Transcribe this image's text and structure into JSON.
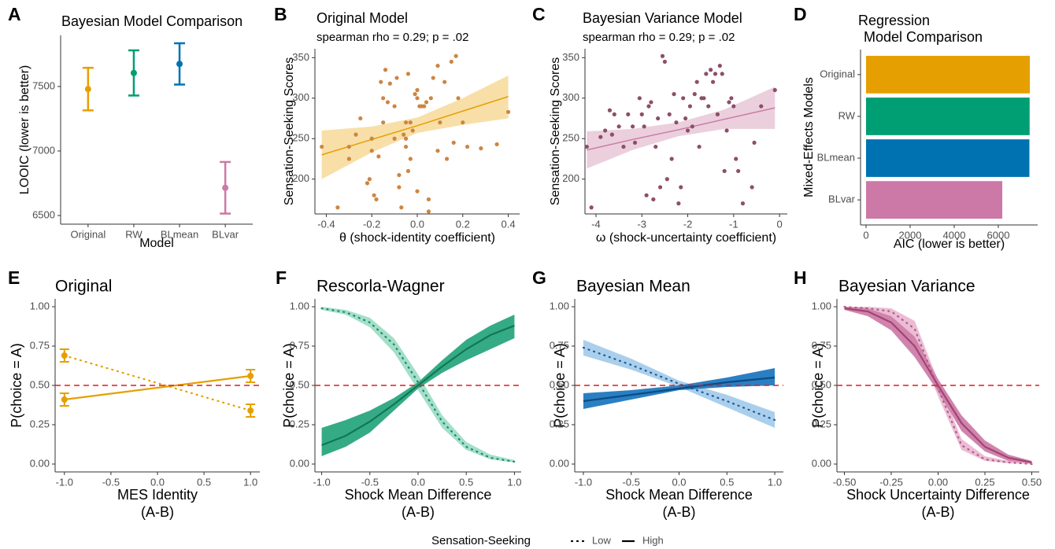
{
  "chart_data": [
    {
      "panel": "A",
      "type": "errorbar",
      "title": "Bayesian Model Comparison",
      "x_label": "Model",
      "y_label": "LOOIC (lower is better)",
      "categories": [
        "Original",
        "RW",
        "BLmean",
        "BLvar"
      ],
      "values": [
        7480,
        7605,
        7675,
        6715
      ],
      "errors": [
        165,
        175,
        160,
        200
      ],
      "colors": [
        "#E69F00",
        "#009E73",
        "#0072B2",
        "#CC79A7"
      ],
      "ylim": [
        6433,
        7896
      ],
      "yticks": [
        6500,
        7000,
        7500
      ]
    },
    {
      "panel": "B",
      "type": "scatter",
      "title": "Original Model",
      "subtitle": "spearman rho = 0.29; p = .02",
      "x_label": "θ  (shock-identity coefficient)",
      "y_label": "Sensation-Seeking Scores",
      "color": "#CD8543",
      "x": [
        -0.42,
        -0.35,
        -0.3,
        -0.3,
        -0.27,
        -0.25,
        -0.22,
        -0.21,
        -0.2,
        -0.19,
        -0.18,
        -0.17,
        -0.16,
        -0.15,
        -0.14,
        -0.13,
        -0.12,
        -0.1,
        -0.1,
        -0.09,
        -0.08,
        -0.08,
        -0.07,
        -0.06,
        -0.05,
        -0.05,
        -0.04,
        -0.04,
        -0.03,
        -0.03,
        -0.02,
        -0.01,
        0,
        0,
        0.01,
        0.02,
        0.03,
        0.04,
        0.05,
        0.05,
        0.06,
        0.07,
        0.09,
        0.09,
        0.1,
        0.12,
        0.13,
        0.15,
        0.16,
        0.17,
        0.18,
        0.2,
        0.22,
        0.28,
        0.35,
        0.4,
        -0.05,
        0,
        -0.15,
        -0.2
      ],
      "y": [
        240,
        165,
        240,
        225,
        255,
        275,
        195,
        200,
        250,
        180,
        175,
        228,
        320,
        300,
        335,
        295,
        318,
        250,
        290,
        325,
        190,
        205,
        165,
        255,
        270,
        240,
        330,
        210,
        225,
        270,
        260,
        305,
        300,
        310,
        290,
        290,
        290,
        295,
        175,
        160,
        300,
        325,
        340,
        235,
        270,
        320,
        225,
        345,
        245,
        352,
        300,
        270,
        240,
        238,
        243,
        283,
        250,
        185,
        270,
        235
      ],
      "fit": {
        "x": [
          -0.42,
          -0.2,
          0,
          0.2,
          0.4
        ],
        "values": [
          230,
          249,
          266,
          284,
          302
        ],
        "lower": [
          200,
          233,
          257,
          267,
          275
        ],
        "upper": [
          260,
          265,
          276,
          300,
          328
        ],
        "color": "#E69F00",
        "band_color": "#F8DFA8"
      },
      "xlim": [
        -0.45,
        0.45
      ],
      "xticks": [
        -0.4,
        -0.2,
        {
          "value": 0,
          "label": "0.0"
        },
        0.2,
        0.4
      ],
      "ylim": [
        157,
        361
      ],
      "yticks": [
        200,
        250,
        300,
        350
      ]
    },
    {
      "panel": "C",
      "type": "scatter",
      "title": "Bayesian Variance Model",
      "subtitle": "spearman rho = 0.29; p = .02",
      "x_label": "ω  (shock-uncertainty coefficient)",
      "y_label": "Sensation-Seeking Scores",
      "color": "#8E4E68",
      "x": [
        -4.2,
        -4.1,
        -3.9,
        -3.8,
        -3.7,
        -3.65,
        -3.6,
        -3.5,
        -3.4,
        -3.3,
        -3.2,
        -3.15,
        -3.05,
        -3,
        -2.95,
        -2.9,
        -2.85,
        -2.8,
        -2.75,
        -2.7,
        -2.65,
        -2.6,
        -2.55,
        -2.5,
        -2.45,
        -2.4,
        -2.35,
        -2.3,
        -2.25,
        -2.2,
        -2.15,
        -2.1,
        -2.05,
        -2,
        -1.95,
        -1.9,
        -1.85,
        -1.8,
        -1.75,
        -1.7,
        -1.65,
        -1.6,
        -1.55,
        -1.5,
        -1.45,
        -1.4,
        -1.35,
        -1.3,
        -1.25,
        -1.2,
        -1.15,
        -1.1,
        -1.05,
        -1,
        -0.95,
        -0.9,
        -0.8,
        -0.6,
        -0.55,
        -0.4,
        -0.1
      ],
      "y": [
        240,
        165,
        252,
        260,
        285,
        255,
        280,
        265,
        240,
        280,
        265,
        245,
        300,
        280,
        265,
        180,
        290,
        295,
        175,
        240,
        275,
        190,
        352,
        345,
        200,
        280,
        225,
        305,
        270,
        170,
        190,
        300,
        275,
        260,
        290,
        265,
        305,
        320,
        240,
        300,
        300,
        330,
        290,
        335,
        320,
        330,
        280,
        340,
        330,
        210,
        260,
        295,
        300,
        290,
        225,
        210,
        170,
        190,
        245,
        290,
        310
      ],
      "fit": {
        "x": [
          -4.2,
          -3.2,
          -2.2,
          -1.2,
          -0.1
        ],
        "values": [
          236,
          249,
          261,
          274,
          288
        ],
        "lower": [
          213,
          236,
          253,
          262,
          262
        ],
        "upper": [
          259,
          262,
          270,
          286,
          314
        ],
        "color": "#CC79A7",
        "band_color": "#EBCFDD"
      },
      "xlim": [
        -4.24,
        0.17
      ],
      "xticks": [
        -4,
        -3,
        -2,
        -1,
        0
      ],
      "ylim": [
        157,
        361
      ],
      "yticks": [
        200,
        250,
        300,
        350
      ]
    },
    {
      "panel": "D",
      "type": "barh",
      "title": [
        "Regression",
        "Model Comparison"
      ],
      "x_label": "AIC (lower is better)",
      "y_label": "Mixed-Effects Models",
      "categories": [
        "Original",
        "RW",
        "BLmean",
        "BLvar"
      ],
      "values": [
        7430,
        7420,
        7410,
        6180
      ],
      "colors": [
        "#E69F00",
        "#009E73",
        "#0072B2",
        "#CC79A7"
      ],
      "xlim": [
        -250,
        7785
      ],
      "xticks": [
        0,
        2000,
        4000,
        6000
      ]
    },
    {
      "panel": "E",
      "type": "line",
      "title": "Original",
      "x_label": [
        "MES Identity",
        "(A-B)"
      ],
      "y_label": "P(choice = A)",
      "x": [
        -1,
        1
      ],
      "series": [
        {
          "name": "Low",
          "linestyle": "dotted",
          "color": "#E69F00",
          "values": [
            0.69,
            0.34
          ],
          "errors": [
            0.04,
            0.04
          ]
        },
        {
          "name": "High",
          "linestyle": "solid",
          "color": "#E69F00",
          "values": [
            0.41,
            0.56
          ],
          "errors": [
            0.04,
            0.04
          ]
        }
      ],
      "hline": 0.5,
      "hline_color": "#E41A1C",
      "xlim": [
        -1.1,
        1.1
      ],
      "xticks": [
        {
          "value": -1,
          "label": "-1.0"
        },
        -0.5,
        {
          "value": 0,
          "label": "0.0"
        },
        0.5,
        {
          "value": 1,
          "label": "1.0"
        }
      ],
      "ylim": [
        -0.05,
        1.05
      ],
      "yticks": [
        {
          "value": 0,
          "label": "0.00"
        },
        0.25,
        {
          "value": 0.5,
          "label": "0.50"
        },
        0.75,
        {
          "value": 1,
          "label": "1.00"
        }
      ]
    },
    {
      "panel": "F",
      "type": "line",
      "title": "Rescorla-Wagner",
      "x_label": [
        "Shock Mean Difference",
        "(A-B)"
      ],
      "y_label": "P(choice = A)",
      "x": [
        -1,
        -0.75,
        -0.5,
        -0.25,
        0,
        0.25,
        0.5,
        0.75,
        1
      ],
      "series": [
        {
          "name": "Low",
          "linestyle": "dotted",
          "color": "#1B8A68",
          "band_color": "#A3DFC9",
          "values": [
            0.99,
            0.965,
            0.9,
            0.76,
            0.52,
            0.27,
            0.11,
            0.04,
            0.015
          ],
          "lower": [
            0.98,
            0.95,
            0.87,
            0.71,
            0.47,
            0.23,
            0.09,
            0.03,
            0.01
          ],
          "upper": [
            1,
            0.98,
            0.93,
            0.8,
            0.57,
            0.31,
            0.14,
            0.06,
            0.025
          ]
        },
        {
          "name": "High",
          "linestyle": "solid",
          "color": "#0F7755",
          "band_color": "#35AB85",
          "values": [
            0.12,
            0.18,
            0.27,
            0.38,
            0.5,
            0.62,
            0.73,
            0.82,
            0.88
          ],
          "lower": [
            0.05,
            0.11,
            0.2,
            0.34,
            0.48,
            0.58,
            0.66,
            0.73,
            0.8
          ],
          "upper": [
            0.23,
            0.28,
            0.34,
            0.42,
            0.52,
            0.66,
            0.79,
            0.88,
            0.95
          ]
        }
      ],
      "hline": 0.5,
      "hline_color": "#E41A1C",
      "xlim": [
        -1.07,
        1.07
      ],
      "xticks": [
        {
          "value": -1,
          "label": "-1.0"
        },
        -0.5,
        {
          "value": 0,
          "label": "0.0"
        },
        0.5,
        {
          "value": 1,
          "label": "1.0"
        }
      ],
      "ylim": [
        -0.05,
        1.05
      ],
      "yticks": [
        {
          "value": 0,
          "label": "0.00"
        },
        0.25,
        {
          "value": 0.5,
          "label": "0.50"
        },
        0.75,
        {
          "value": 1,
          "label": "1.00"
        }
      ]
    },
    {
      "panel": "G",
      "type": "line",
      "title": "Bayesian Mean",
      "x_label": [
        "Shock Mean Difference",
        "(A-B)"
      ],
      "y_label": "P(choice = A)",
      "x": [
        -1,
        -0.5,
        0,
        0.5,
        1
      ],
      "series": [
        {
          "name": "Low",
          "linestyle": "dotted",
          "color": "#1D5A92",
          "band_color": "#AACFEC",
          "values": [
            0.74,
            0.63,
            0.51,
            0.4,
            0.28
          ],
          "lower": [
            0.69,
            0.6,
            0.49,
            0.36,
            0.23
          ],
          "upper": [
            0.79,
            0.67,
            0.53,
            0.44,
            0.33
          ]
        },
        {
          "name": "High",
          "linestyle": "solid",
          "color": "#0B4C86",
          "band_color": "#2A7FC2",
          "values": [
            0.4,
            0.44,
            0.48,
            0.52,
            0.55
          ],
          "lower": [
            0.35,
            0.41,
            0.47,
            0.49,
            0.5
          ],
          "upper": [
            0.45,
            0.47,
            0.5,
            0.55,
            0.61
          ]
        }
      ],
      "hline": 0.5,
      "hline_color": "#E41A1C",
      "xlim": [
        -1.09,
        1.09
      ],
      "xticks": [
        {
          "value": -1,
          "label": "-1.0"
        },
        -0.5,
        {
          "value": 0,
          "label": "0.0"
        },
        0.5,
        {
          "value": 1,
          "label": "1.0"
        }
      ],
      "ylim": [
        -0.05,
        1.05
      ],
      "yticks": [
        {
          "value": 0,
          "label": "0.00"
        },
        0.25,
        {
          "value": 0.5,
          "label": "0.50"
        },
        0.75,
        {
          "value": 1,
          "label": "1.00"
        }
      ]
    },
    {
      "panel": "H",
      "type": "line",
      "title": "Bayesian Variance",
      "x_label": [
        "Shock Uncertainty Difference",
        "(A-B)"
      ],
      "y_label": "P(choice = A)",
      "x": [
        -0.5,
        -0.375,
        -0.25,
        -0.125,
        0,
        0.125,
        0.25,
        0.375,
        0.5
      ],
      "series": [
        {
          "name": "Low",
          "linestyle": "dotted",
          "color": "#B4588A",
          "band_color": "#EBBDD4",
          "values": [
            1,
            0.99,
            0.97,
            0.86,
            0.48,
            0.12,
            0.03,
            0.01,
            0
          ],
          "lower": [
            0.995,
            0.98,
            0.94,
            0.8,
            0.43,
            0.09,
            0.02,
            0.005,
            0
          ],
          "upper": [
            1,
            1,
            0.99,
            0.91,
            0.53,
            0.16,
            0.05,
            0.02,
            0.01
          ]
        },
        {
          "name": "High",
          "linestyle": "solid",
          "color": "#A0456F",
          "band_color": "#D084AD",
          "values": [
            0.99,
            0.97,
            0.9,
            0.75,
            0.5,
            0.26,
            0.11,
            0.04,
            0.01
          ],
          "lower": [
            0.98,
            0.94,
            0.85,
            0.68,
            0.46,
            0.21,
            0.08,
            0.02,
            0.005
          ],
          "upper": [
            1,
            0.99,
            0.94,
            0.81,
            0.54,
            0.31,
            0.15,
            0.06,
            0.02
          ]
        }
      ],
      "hline": 0.5,
      "hline_color": "#E41A1C",
      "xlim": [
        -0.54,
        0.54
      ],
      "xticks": [
        {
          "value": -0.5,
          "label": "-0.50"
        },
        -0.25,
        {
          "value": 0,
          "label": "0.00"
        },
        0.25,
        {
          "value": 0.5,
          "label": "0.50"
        }
      ],
      "ylim": [
        -0.05,
        1.05
      ],
      "yticks": [
        {
          "value": 0,
          "label": "0.00"
        },
        0.25,
        {
          "value": 0.5,
          "label": "0.50"
        },
        0.75,
        {
          "value": 1,
          "label": "1.00"
        }
      ]
    }
  ],
  "legend": {
    "title": "Sensation-Seeking"
  }
}
